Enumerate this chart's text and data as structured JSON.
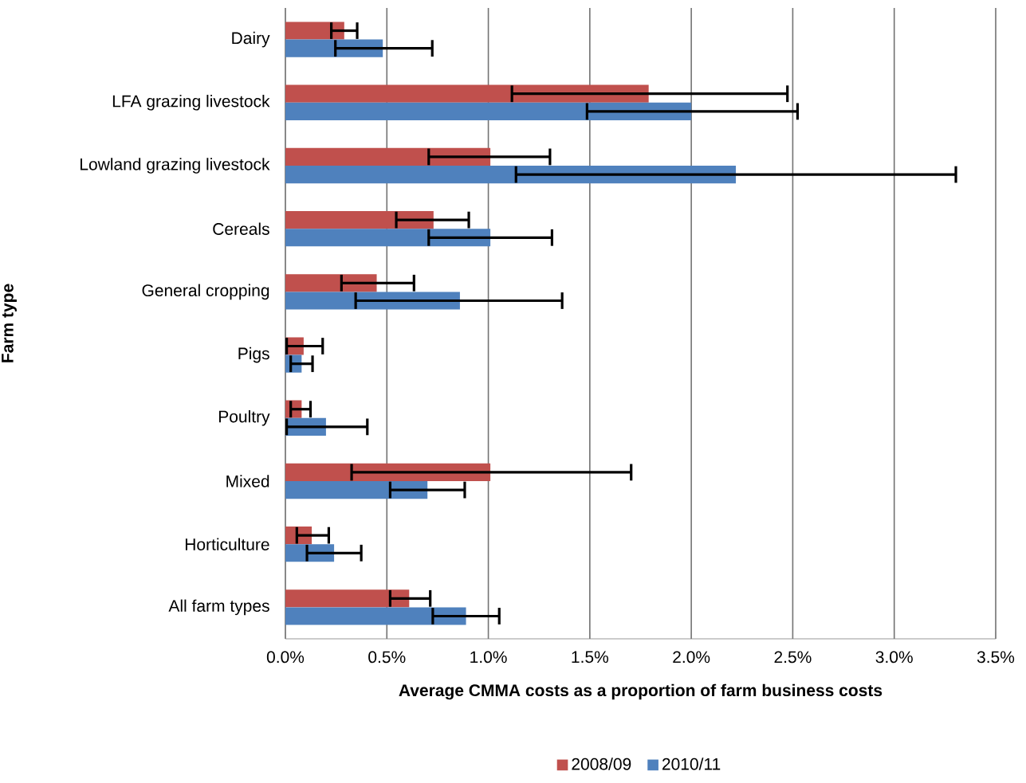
{
  "chart_data": {
    "type": "bar",
    "orientation": "horizontal",
    "xlabel": "Average CMMA costs as a proportion of farm business costs",
    "ylabel": "Farm type",
    "categories": [
      "Dairy",
      "LFA grazing livestock",
      "Lowland grazing livestock",
      "Cereals",
      "General cropping",
      "Pigs",
      "Poultry",
      "Mixed",
      "Horticulture",
      "All farm types"
    ],
    "series": [
      {
        "name": "2008/09",
        "color": "#c0504d",
        "values": [
          0.29,
          1.79,
          1.01,
          0.73,
          0.45,
          0.09,
          0.08,
          1.01,
          0.13,
          0.61
        ],
        "errors": [
          [
            0.22,
            0.36
          ],
          [
            1.11,
            2.48
          ],
          [
            0.7,
            1.31
          ],
          [
            0.54,
            0.91
          ],
          [
            0.27,
            0.64
          ],
          [
            0.0,
            0.19
          ],
          [
            0.02,
            0.13
          ],
          [
            0.32,
            1.71
          ],
          [
            0.05,
            0.22
          ],
          [
            0.51,
            0.72
          ]
        ]
      },
      {
        "name": "2010/11",
        "color": "#4f81bd",
        "values": [
          0.48,
          2.0,
          2.22,
          1.01,
          0.86,
          0.08,
          0.2,
          0.7,
          0.24,
          0.89
        ],
        "errors": [
          [
            0.24,
            0.73
          ],
          [
            1.48,
            2.53
          ],
          [
            1.13,
            3.31
          ],
          [
            0.7,
            1.32
          ],
          [
            0.34,
            1.37
          ],
          [
            0.02,
            0.14
          ],
          [
            0.0,
            0.41
          ],
          [
            0.51,
            0.89
          ],
          [
            0.1,
            0.38
          ],
          [
            0.72,
            1.06
          ]
        ]
      }
    ],
    "xlim": [
      0,
      3.5
    ],
    "xticks": [
      {
        "value": 0,
        "label": "0.0%"
      },
      {
        "value": 0.5,
        "label": "0.5%"
      },
      {
        "value": 1,
        "label": "1.0%"
      },
      {
        "value": 1.5,
        "label": "1.5%"
      },
      {
        "value": 2,
        "label": "2.0%"
      },
      {
        "value": 2.5,
        "label": "2.5%"
      },
      {
        "value": 3,
        "label": "3.0%"
      },
      {
        "value": 3.5,
        "label": "3.5%"
      }
    ],
    "grid": "x",
    "legend": "bottom"
  }
}
